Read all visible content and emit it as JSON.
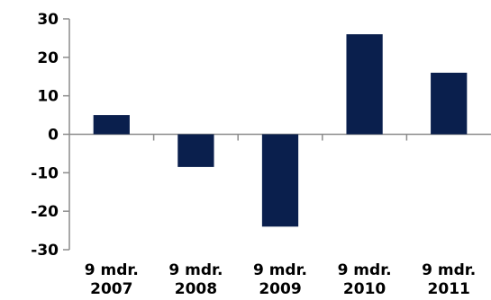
{
  "chart_data": {
    "type": "bar",
    "title": "",
    "xlabel": "",
    "ylabel": "",
    "categories": [
      [
        "9 mdr.",
        "2007"
      ],
      [
        "9 mdr.",
        "2008"
      ],
      [
        "9 mdr.",
        "2009"
      ],
      [
        "9 mdr.",
        "2010"
      ],
      [
        "9 mdr.",
        "2011"
      ]
    ],
    "values": [
      5,
      -8.5,
      -24,
      26,
      16
    ],
    "ylim": [
      -30,
      30
    ],
    "yticks": [
      30,
      20,
      10,
      0,
      -10,
      -20,
      -30
    ],
    "ytick_labels": [
      "30",
      "20",
      "10",
      "0",
      "-10",
      "-20",
      "-30"
    ],
    "bar_color": "#0a1f4d",
    "axis_color": "#8c8c8c",
    "grid": false,
    "legend": "none"
  }
}
